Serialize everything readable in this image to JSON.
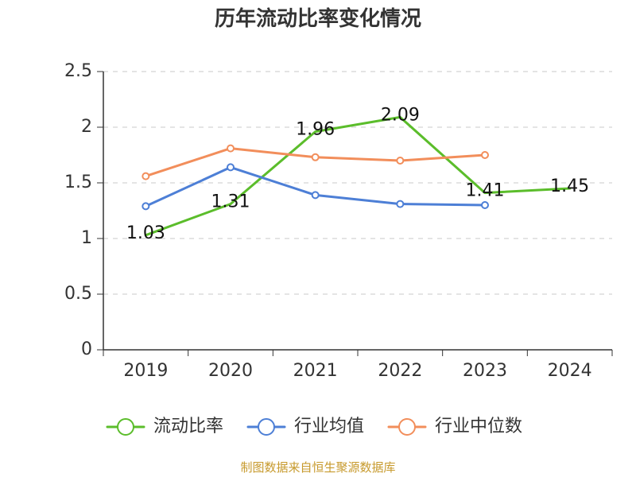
{
  "chart_data": {
    "type": "line",
    "title": "历年流动比率变化情况",
    "categories": [
      "2019",
      "2020",
      "2021",
      "2022",
      "2023",
      "2024"
    ],
    "ylim": [
      0,
      2.5
    ],
    "yticks": [
      "0",
      "0.5",
      "1",
      "1.5",
      "2",
      "2.5"
    ],
    "ytick_values": [
      0,
      0.5,
      1,
      1.5,
      2,
      2.5
    ],
    "grid": true,
    "legend_position": "bottom-center",
    "source": "制图数据来自恒生聚源数据库",
    "series": [
      {
        "key": "current-ratio",
        "name": "流动比率",
        "color": "#5bbd2b",
        "values": [
          1.03,
          1.31,
          1.96,
          2.09,
          1.41,
          1.45
        ],
        "labels": [
          "1.03",
          "1.31",
          "1.96",
          "2.09",
          "1.41",
          "1.45"
        ],
        "show_markers": false
      },
      {
        "key": "industry-average",
        "name": "行业均值",
        "color": "#4d7fd6",
        "values": [
          1.29,
          1.64,
          1.39,
          1.31,
          1.3,
          null
        ],
        "show_markers": true
      },
      {
        "key": "industry-median",
        "name": "行业中位数",
        "color": "#f28e5b",
        "values": [
          1.56,
          1.81,
          1.73,
          1.7,
          1.75,
          null
        ],
        "show_markers": true
      }
    ]
  }
}
